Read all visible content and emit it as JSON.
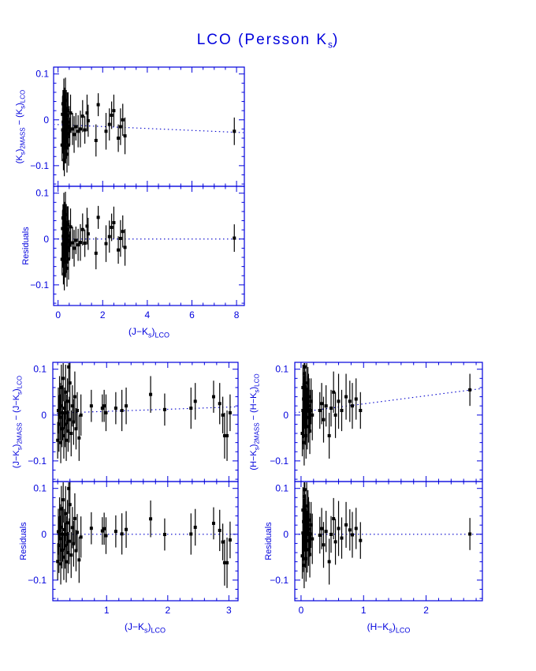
{
  "title": {
    "text": "LCO (Persson K{s})"
  },
  "colors": {
    "axis": "#0000dd",
    "fit_line": "#0000cc",
    "data_points": "#000000",
    "background": "#ffffff"
  },
  "chart_data": [
    {
      "type": "scatter",
      "name": "ks-difference-vs-j-ks",
      "xlabel": "(J−K{s}){LCO}",
      "panels": [
        {
          "ylabel": "(K{s}){2MASS} − (K{s}){LCO}",
          "content": "difference"
        },
        {
          "ylabel": "Residuals",
          "content": "residuals"
        }
      ],
      "xlim": [
        -0.2,
        8.35
      ],
      "ylim": [
        -0.145,
        0.115
      ],
      "xticks": [
        0,
        2,
        4,
        6,
        8
      ],
      "xtick_minor_step": 0.5,
      "yticks": [
        -0.1,
        0,
        0.1
      ],
      "ytick_labels": [
        "−0.1",
        "0",
        "0.1"
      ],
      "ytick_minor_step": 0.02,
      "grid": false,
      "legend": false,
      "fit_line": {
        "style": "dotted",
        "y_at_xmin": -0.01,
        "y_at_xmax": -0.028
      },
      "points": [
        [
          0.18,
          -0.055,
          0.035
        ],
        [
          0.2,
          0.012,
          0.04
        ],
        [
          0.21,
          -0.022,
          0.05
        ],
        [
          0.22,
          0.035,
          0.03
        ],
        [
          0.23,
          -0.005,
          0.045
        ],
        [
          0.24,
          -0.07,
          0.04
        ],
        [
          0.25,
          0.022,
          0.035
        ],
        [
          0.25,
          -0.035,
          0.05
        ],
        [
          0.26,
          0.05,
          0.04
        ],
        [
          0.27,
          -0.012,
          0.03
        ],
        [
          0.28,
          -0.088,
          0.035
        ],
        [
          0.28,
          0.002,
          0.05
        ],
        [
          0.29,
          0.03,
          0.04
        ],
        [
          0.3,
          -0.05,
          0.045
        ],
        [
          0.31,
          0.015,
          0.035
        ],
        [
          0.32,
          -0.025,
          0.04
        ],
        [
          0.33,
          0.042,
          0.05
        ],
        [
          0.34,
          -0.06,
          0.035
        ],
        [
          0.35,
          0.005,
          0.03
        ],
        [
          0.36,
          -0.04,
          0.045
        ],
        [
          0.37,
          0.025,
          0.04
        ],
        [
          0.38,
          -0.015,
          0.035
        ],
        [
          0.4,
          -0.075,
          0.04
        ],
        [
          0.41,
          0.01,
          0.05
        ],
        [
          0.43,
          -0.03,
          0.035
        ],
        [
          0.45,
          0.02,
          0.04
        ],
        [
          0.47,
          -0.055,
          0.045
        ],
        [
          0.5,
          -0.005,
          0.035
        ],
        [
          0.53,
          -0.025,
          0.03
        ],
        [
          0.56,
          0.015,
          0.04
        ],
        [
          0.65,
          -0.02,
          0.035
        ],
        [
          0.72,
          -0.032,
          0.04
        ],
        [
          0.8,
          -0.015,
          0.03
        ],
        [
          0.9,
          -0.025,
          0.035
        ],
        [
          1.0,
          -0.02,
          0.04
        ],
        [
          1.1,
          0.008,
          0.035
        ],
        [
          1.2,
          -0.022,
          0.03
        ],
        [
          1.3,
          0.015,
          0.04
        ],
        [
          1.35,
          -0.002,
          0.035
        ],
        [
          1.7,
          -0.045,
          0.035
        ],
        [
          1.8,
          0.033,
          0.025
        ],
        [
          2.15,
          -0.025,
          0.04
        ],
        [
          2.3,
          -0.01,
          0.035
        ],
        [
          2.4,
          0.01,
          0.03
        ],
        [
          2.5,
          0.02,
          0.035
        ],
        [
          2.7,
          -0.04,
          0.03
        ],
        [
          2.8,
          -0.015,
          0.04
        ],
        [
          2.9,
          0.0,
          0.035
        ],
        [
          3.0,
          -0.035,
          0.04
        ],
        [
          7.9,
          -0.025,
          0.03
        ]
      ]
    },
    {
      "type": "scatter",
      "name": "j-ks-difference-vs-j-ks",
      "xlabel": "(J−K{s}){LCO}",
      "panels": [
        {
          "ylabel": "(J−K{s}){2MASS} − (J−K{s}){LCO}",
          "content": "difference"
        },
        {
          "ylabel": "Residuals",
          "content": "residuals"
        }
      ],
      "xlim": [
        0.12,
        3.15
      ],
      "ylim": [
        -0.145,
        0.115
      ],
      "xticks": [
        1,
        2,
        3
      ],
      "xtick_minor_step": 0.2,
      "yticks": [
        -0.1,
        0,
        0.1
      ],
      "ytick_labels": [
        "−0.1",
        "0",
        "0.1"
      ],
      "ytick_minor_step": 0.02,
      "grid": false,
      "legend": false,
      "fit_line": {
        "style": "dotted",
        "y_at_xmin": 0.004,
        "y_at_xmax": 0.018
      },
      "points": [
        [
          0.2,
          -0.055,
          0.04
        ],
        [
          0.21,
          0.01,
          0.05
        ],
        [
          0.22,
          -0.02,
          0.06
        ],
        [
          0.23,
          0.04,
          0.045
        ],
        [
          0.24,
          -0.005,
          0.05
        ],
        [
          0.25,
          -0.06,
          0.045
        ],
        [
          0.25,
          0.02,
          0.05
        ],
        [
          0.26,
          0.06,
          0.05
        ],
        [
          0.27,
          -0.03,
          0.04
        ],
        [
          0.28,
          0.005,
          0.06
        ],
        [
          0.29,
          0.08,
          0.05
        ],
        [
          0.3,
          -0.045,
          0.05
        ],
        [
          0.31,
          0.015,
          0.045
        ],
        [
          0.32,
          -0.02,
          0.05
        ],
        [
          0.33,
          0.05,
          0.06
        ],
        [
          0.34,
          -0.055,
          0.045
        ],
        [
          0.35,
          0.005,
          0.04
        ],
        [
          0.36,
          0.03,
          0.05
        ],
        [
          0.37,
          -0.035,
          0.045
        ],
        [
          0.38,
          0.105,
          0.055
        ],
        [
          0.39,
          -0.01,
          0.05
        ],
        [
          0.4,
          0.07,
          0.06
        ],
        [
          0.42,
          -0.04,
          0.05
        ],
        [
          0.44,
          0.02,
          0.045
        ],
        [
          0.46,
          -0.015,
          0.05
        ],
        [
          0.48,
          0.04,
          0.055
        ],
        [
          0.5,
          -0.03,
          0.045
        ],
        [
          0.52,
          0.01,
          0.04
        ],
        [
          0.55,
          -0.05,
          0.05
        ],
        [
          0.58,
          0.0,
          0.045
        ],
        [
          0.75,
          0.02,
          0.035
        ],
        [
          0.93,
          0.015,
          0.03
        ],
        [
          0.96,
          0.02,
          0.035
        ],
        [
          0.99,
          0.005,
          0.04
        ],
        [
          1.15,
          0.015,
          0.035
        ],
        [
          1.25,
          0.01,
          0.045
        ],
        [
          1.32,
          0.02,
          0.04
        ],
        [
          1.72,
          0.045,
          0.04
        ],
        [
          1.95,
          0.012,
          0.035
        ],
        [
          2.38,
          0.015,
          0.045
        ],
        [
          2.45,
          0.03,
          0.04
        ],
        [
          2.75,
          0.04,
          0.035
        ],
        [
          2.85,
          0.025,
          0.045
        ],
        [
          2.9,
          0.0,
          0.04
        ],
        [
          2.93,
          -0.045,
          0.05
        ],
        [
          2.97,
          -0.045,
          0.055
        ],
        [
          3.02,
          0.005,
          0.04
        ]
      ]
    },
    {
      "type": "scatter",
      "name": "h-ks-difference-vs-h-ks",
      "xlabel": "(H−K{s}){LCO}",
      "panels": [
        {
          "ylabel": "(H−K{s}){2MASS} − (H−K{s}){LCO}",
          "content": "difference"
        },
        {
          "ylabel": "Residuals",
          "content": "residuals"
        }
      ],
      "xlim": [
        -0.1,
        2.9
      ],
      "ylim": [
        -0.145,
        0.115
      ],
      "xticks": [
        0,
        1,
        2
      ],
      "xtick_minor_step": 0.2,
      "yticks": [
        -0.1,
        0,
        0.1
      ],
      "ytick_labels": [
        "−0.1",
        "0",
        "0.1"
      ],
      "ytick_minor_step": 0.02,
      "grid": false,
      "legend": false,
      "fit_line": {
        "style": "dotted",
        "y_at_xmin": 0.005,
        "y_at_xmax": 0.058
      },
      "points": [
        [
          0.02,
          -0.04,
          0.05
        ],
        [
          0.03,
          0.01,
          0.06
        ],
        [
          0.03,
          0.06,
          0.05
        ],
        [
          0.04,
          -0.02,
          0.055
        ],
        [
          0.04,
          0.035,
          0.05
        ],
        [
          0.05,
          0.0,
          0.06
        ],
        [
          0.05,
          0.09,
          0.055
        ],
        [
          0.05,
          -0.06,
          0.05
        ],
        [
          0.06,
          0.02,
          0.05
        ],
        [
          0.06,
          0.105,
          0.06
        ],
        [
          0.07,
          -0.01,
          0.055
        ],
        [
          0.07,
          0.045,
          0.05
        ],
        [
          0.08,
          0.005,
          0.06
        ],
        [
          0.08,
          -0.045,
          0.05
        ],
        [
          0.09,
          0.03,
          0.055
        ],
        [
          0.09,
          0.07,
          0.06
        ],
        [
          0.1,
          -0.025,
          0.05
        ],
        [
          0.1,
          0.015,
          0.045
        ],
        [
          0.11,
          0.055,
          0.05
        ],
        [
          0.12,
          -0.005,
          0.055
        ],
        [
          0.12,
          0.04,
          0.05
        ],
        [
          0.13,
          0.02,
          0.06
        ],
        [
          0.14,
          -0.035,
          0.05
        ],
        [
          0.15,
          0.01,
          0.045
        ],
        [
          0.16,
          0.03,
          0.05
        ],
        [
          0.18,
          0.0,
          0.055
        ],
        [
          0.3,
          0.01,
          0.04
        ],
        [
          0.33,
          0.025,
          0.045
        ],
        [
          0.36,
          -0.01,
          0.05
        ],
        [
          0.4,
          0.02,
          0.045
        ],
        [
          0.45,
          -0.045,
          0.05
        ],
        [
          0.48,
          0.015,
          0.04
        ],
        [
          0.52,
          0.05,
          0.045
        ],
        [
          0.55,
          0.0,
          0.05
        ],
        [
          0.6,
          0.03,
          0.06
        ],
        [
          0.65,
          0.01,
          0.045
        ],
        [
          0.72,
          0.04,
          0.05
        ],
        [
          0.78,
          0.03,
          0.045
        ],
        [
          0.82,
          0.02,
          0.05
        ],
        [
          0.88,
          0.035,
          0.045
        ],
        [
          0.95,
          0.01,
          0.04
        ],
        [
          2.7,
          0.055,
          0.035
        ]
      ]
    }
  ]
}
